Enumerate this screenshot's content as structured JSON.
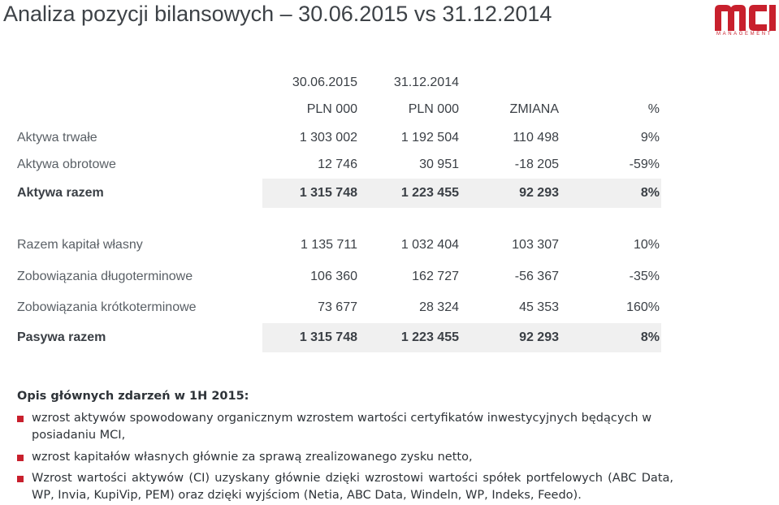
{
  "title": "Analiza pozycji bilansowych – 30.06.2015 vs 31.12.2014",
  "logo": {
    "text": "mci",
    "subtitle": "MANAGEMENT"
  },
  "table": {
    "dates": [
      "30.06.2015",
      "31.12.2014"
    ],
    "headers": [
      "PLN 000",
      "PLN 000",
      "ZMIANA",
      "%"
    ],
    "rows": [
      {
        "label": "Aktywa trwałe",
        "v1": "1 303 002",
        "v2": "1 192 504",
        "change": "110 498",
        "pct": "9%"
      },
      {
        "label": "Aktywa obrotowe",
        "v1": "12 746",
        "v2": "30 951",
        "change": "-18 205",
        "pct": "-59%"
      },
      {
        "label": "Aktywa razem",
        "v1": "1 315 748",
        "v2": "1 223 455",
        "change": "92 293",
        "pct": "8%"
      },
      {
        "label": "Razem kapitał własny",
        "v1": "1 135 711",
        "v2": "1 032 404",
        "change": "103 307",
        "pct": "10%"
      },
      {
        "label": "Zobowiązania długoterminowe",
        "v1": "106 360",
        "v2": "162 727",
        "change": "-56 367",
        "pct": "-35%"
      },
      {
        "label": "Zobowiązania krótkoterminowe",
        "v1": "73 677",
        "v2": "28 324",
        "change": "45 353",
        "pct": "160%"
      },
      {
        "label": "Pasywa razem",
        "v1": "1 315 748",
        "v2": "1 223 455",
        "change": "92 293",
        "pct": "8%"
      }
    ]
  },
  "notes": {
    "title": "Opis głównych zdarzeń w 1H 2015:",
    "items": [
      "wzrost aktywów spowodowany organicznym wzrostem wartości certyfikatów inwestycyjnych będących w posiadaniu MCI,",
      "wzrost kapitałów własnych głównie za sprawą zrealizowanego zysku netto,",
      "Wzrost wartości aktywów (CI) uzyskany głównie dzięki wzrostowi wartości spółek portfelowych (ABC Data, WP, Invia, KupiVip, PEM) oraz dzięki wyjściom (Netia, ABC Data, Windeln, WP, Indeks, Feedo)."
    ]
  },
  "colors": {
    "accent": "#c8202d",
    "text": "#3a3f45",
    "highlight": "#f0f0f0"
  }
}
